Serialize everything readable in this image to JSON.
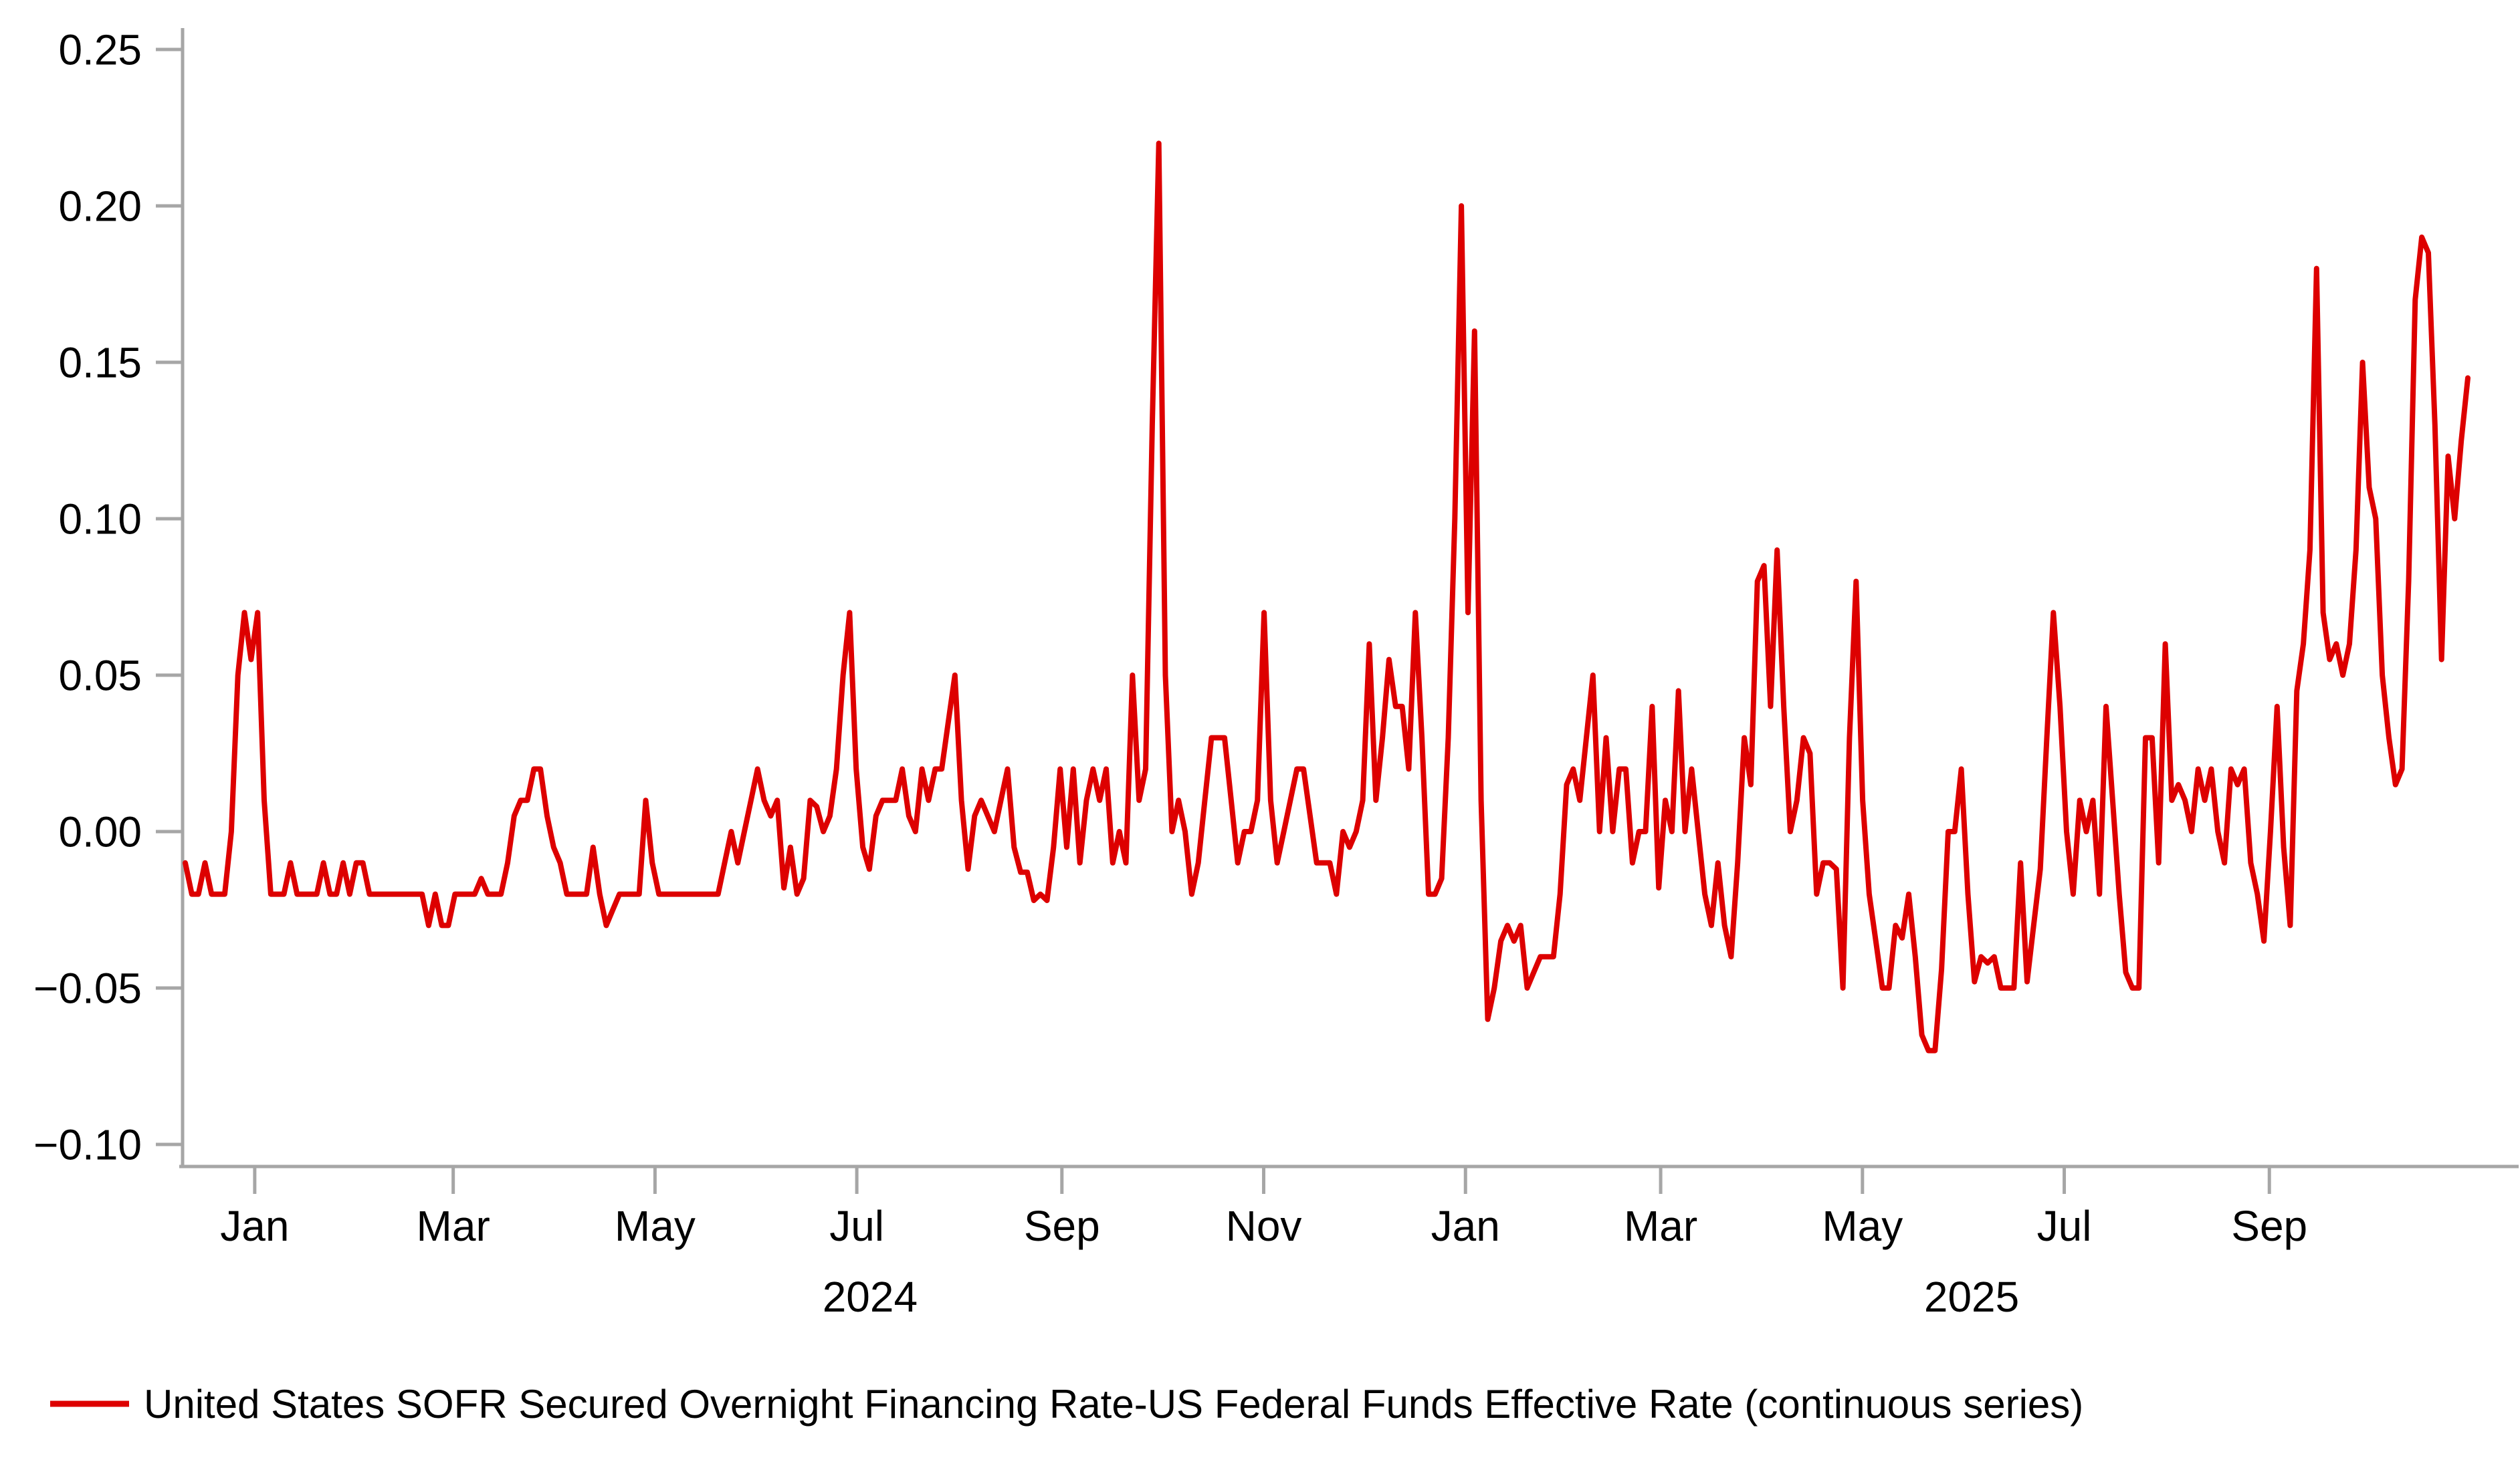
{
  "chart_data": {
    "type": "line",
    "title": "",
    "xlabel": "",
    "ylabel": "",
    "grid": false,
    "legend_position": "bottom-left",
    "x_range": {
      "start": "2023-12-11",
      "end": "2025-10-31",
      "span_days": 690
    },
    "y_axis": {
      "min": -0.1,
      "max": 0.25,
      "ticks": [
        {
          "label": "0.25",
          "value": 0.25
        },
        {
          "label": "0.20",
          "value": 0.2
        },
        {
          "label": "0.15",
          "value": 0.15
        },
        {
          "label": "0.10",
          "value": 0.1
        },
        {
          "label": "0.05",
          "value": 0.05
        },
        {
          "label": "0.00",
          "value": 0.0
        },
        {
          "label": "−0.05",
          "value": -0.05
        },
        {
          "label": "−0.10",
          "value": -0.1
        }
      ]
    },
    "x_axis": {
      "ticks": [
        {
          "label": "Jan",
          "day": 21
        },
        {
          "label": "Mar",
          "day": 81
        },
        {
          "label": "May",
          "day": 142
        },
        {
          "label": "Jul",
          "day": 203
        },
        {
          "label": "Sep",
          "day": 265
        },
        {
          "label": "Nov",
          "day": 326
        },
        {
          "label": "Jan",
          "day": 387
        },
        {
          "label": "Mar",
          "day": 446
        },
        {
          "label": "May",
          "day": 507
        },
        {
          "label": "Jul",
          "day": 568
        },
        {
          "label": "Sep",
          "day": 630
        }
      ],
      "year_labels": [
        {
          "label": "2024",
          "day": 207
        },
        {
          "label": "2025",
          "day": 540
        }
      ]
    },
    "series": [
      {
        "name": "United States SOFR Secured Overnight Financing Rate-US Federal Funds Effective Rate (continuous series)",
        "color": "#DD0000",
        "point_interval_days": 2,
        "values": [
          -0.01,
          -0.02,
          -0.02,
          -0.01,
          -0.02,
          -0.02,
          -0.02,
          0,
          0.05,
          0.07,
          0.055,
          0.07,
          0.01,
          -0.02,
          -0.02,
          -0.02,
          -0.01,
          -0.02,
          -0.02,
          -0.02,
          -0.02,
          -0.01,
          -0.02,
          -0.02,
          -0.01,
          -0.02,
          -0.01,
          -0.01,
          -0.02,
          -0.02,
          -0.02,
          -0.02,
          -0.02,
          -0.02,
          -0.02,
          -0.02,
          -0.02,
          -0.03,
          -0.02,
          -0.03,
          -0.03,
          -0.02,
          -0.02,
          -0.02,
          -0.02,
          -0.015,
          -0.02,
          -0.02,
          -0.02,
          -0.01,
          0.005,
          0.01,
          0.01,
          0.02,
          0.02,
          0.005,
          -0.005,
          -0.01,
          -0.02,
          -0.02,
          -0.02,
          -0.02,
          -0.005,
          -0.02,
          -0.03,
          -0.025,
          -0.02,
          -0.02,
          -0.02,
          -0.02,
          0.01,
          -0.01,
          -0.02,
          -0.02,
          -0.02,
          -0.02,
          -0.02,
          -0.02,
          -0.02,
          -0.02,
          -0.02,
          -0.02,
          -0.01,
          0,
          -0.01,
          0,
          0.01,
          0.02,
          0.01,
          0.005,
          0.01,
          -0.018,
          -0.005,
          -0.02,
          -0.015,
          0.01,
          0.008,
          0,
          0.005,
          0.02,
          0.05,
          0.07,
          0.02,
          -0.005,
          -0.012,
          0.005,
          0.01,
          0.01,
          0.01,
          0.02,
          0.005,
          0,
          0.02,
          0.01,
          0.02,
          0.02,
          0.035,
          0.05,
          0.01,
          -0.012,
          0.005,
          0.01,
          0.005,
          0,
          0.01,
          0.02,
          -0.005,
          -0.013,
          -0.013,
          -0.022,
          -0.02,
          -0.022,
          -0.005,
          0.02,
          -0.005,
          0.02,
          -0.01,
          0.01,
          0.02,
          0.01,
          0.02,
          -0.01,
          0,
          -0.01,
          0.05,
          0.01,
          0.02,
          0.13,
          0.22,
          0.05,
          0,
          0.01,
          0,
          -0.02,
          -0.01,
          0.01,
          0.03,
          0.03,
          0.03,
          0.01,
          -0.01,
          0,
          0,
          0.01,
          0.07,
          0.01,
          -0.01,
          0,
          0.01,
          0.02,
          0.02,
          0.005,
          -0.01,
          -0.01,
          -0.01,
          -0.02,
          0,
          -0.005,
          0,
          0.01,
          0.06,
          0.01,
          0.03,
          0.055,
          0.04,
          0.04,
          0.02,
          0.07,
          0.03,
          -0.02,
          -0.02,
          -0.015,
          0.03,
          0.1,
          0.2,
          0.07,
          0.16,
          0.01,
          -0.06,
          -0.05,
          -0.035,
          -0.03,
          -0.035,
          -0.03,
          -0.05,
          -0.045,
          -0.04,
          -0.04,
          -0.04,
          -0.02,
          0.015,
          0.02,
          0.01,
          0.03,
          0.05,
          0,
          0.03,
          0,
          0.02,
          0.02,
          -0.01,
          0,
          0,
          0.04,
          -0.018,
          0.01,
          0,
          0.045,
          0,
          0.02,
          0,
          -0.02,
          -0.03,
          -0.01,
          -0.03,
          -0.04,
          -0.01,
          0.03,
          0.015,
          0.08,
          0.085,
          0.04,
          0.09,
          0.04,
          0,
          0.01,
          0.03,
          0.025,
          -0.02,
          -0.01,
          -0.01,
          -0.012,
          -0.05,
          0.03,
          0.08,
          0.01,
          -0.02,
          -0.035,
          -0.05,
          -0.05,
          -0.03,
          -0.034,
          -0.02,
          -0.04,
          -0.065,
          -0.07,
          -0.07,
          -0.044,
          0,
          0,
          0.02,
          -0.02,
          -0.048,
          -0.04,
          -0.042,
          -0.04,
          -0.05,
          -0.05,
          -0.05,
          -0.01,
          -0.048,
          -0.03,
          -0.012,
          0.03,
          0.07,
          0.04,
          0,
          -0.02,
          0.01,
          0,
          0.01,
          -0.02,
          0.04,
          0.01,
          -0.02,
          -0.045,
          -0.05,
          -0.05,
          0.03,
          0.03,
          -0.01,
          0.06,
          0.01,
          0.015,
          0.01,
          0,
          0.02,
          0.01,
          0.02,
          0,
          -0.01,
          0.02,
          0.015,
          0.02,
          -0.01,
          -0.02,
          -0.035,
          0,
          0.04,
          -0.005,
          -0.03,
          0.045,
          0.06,
          0.09,
          0.18,
          0.07,
          0.055,
          0.06,
          0.05,
          0.06,
          0.09,
          0.15,
          0.11,
          0.1,
          0.05,
          0.03,
          0.015,
          0.02,
          0.08,
          0.17,
          0.19,
          0.185,
          0.13,
          0.055,
          0.12,
          0.1,
          0.125,
          0.145
        ]
      }
    ],
    "colors": {
      "line": "#DD0000",
      "axis": "#A6A6A6",
      "text": "#000000",
      "background": "#FFFFFF"
    }
  },
  "legend": {
    "label": "United States SOFR Secured Overnight Financing Rate-US Federal Funds Effective Rate (continuous series)"
  }
}
